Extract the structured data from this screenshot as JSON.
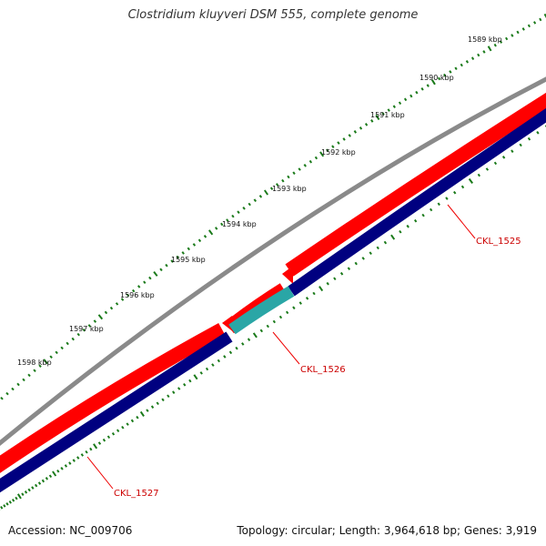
{
  "title": "Clostridium kluyveri DSM 555, complete genome",
  "colors": {
    "backbone": "#8a8a8a",
    "forward_strand": "#ff0000",
    "reverse_strand": "#000080",
    "highlight_strand": "#2aa6a6",
    "ticks": "#1a7a1a",
    "label_line": "#ee0000"
  },
  "ruler_labels": [
    "1589 kbp",
    "1590 kbp",
    "1591 kbp",
    "1592 kbp",
    "1593 kbp",
    "1594 kbp",
    "1595 kbp",
    "1596 kbp",
    "1597 kbp",
    "1598 kbp"
  ],
  "genes": [
    {
      "name": "CKL_1525"
    },
    {
      "name": "CKL_1526"
    },
    {
      "name": "CKL_1527"
    }
  ],
  "footer": {
    "accession": "Accession: NC_009706",
    "summary": "Topology: circular; Length: 3,964,618 bp; Genes: 3,919"
  }
}
